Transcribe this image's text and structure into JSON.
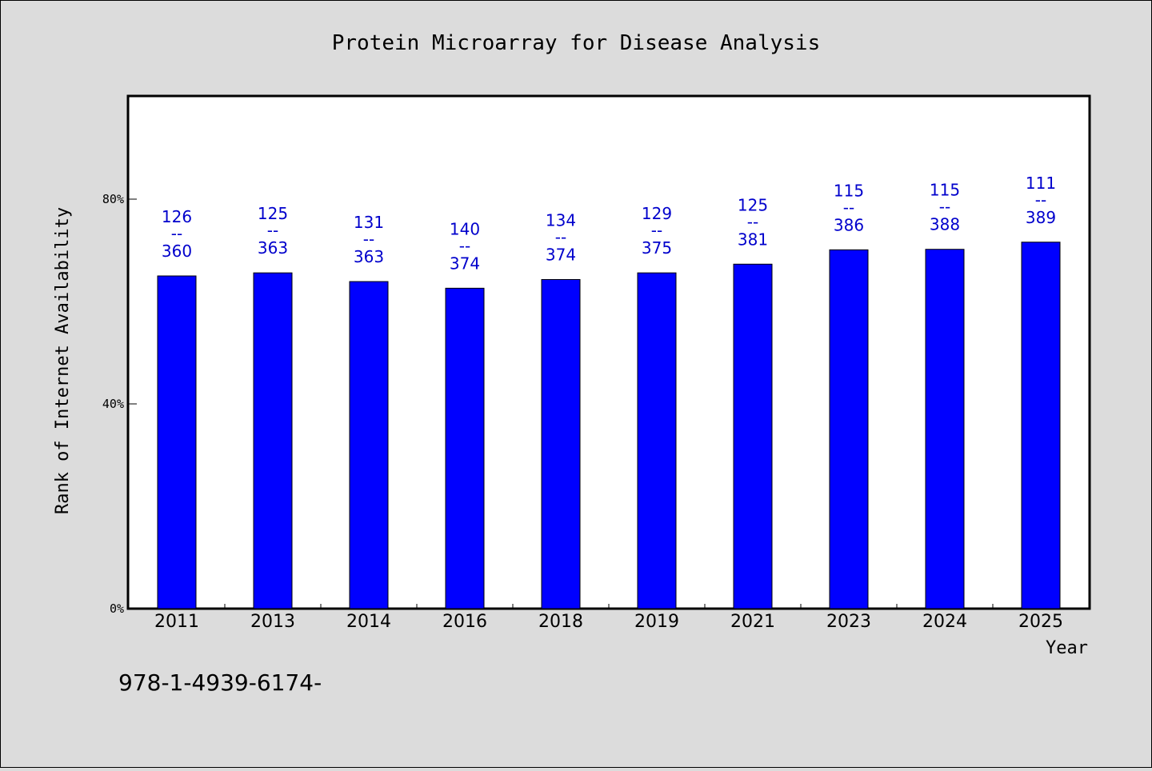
{
  "chart_data": {
    "type": "bar",
    "title": "Protein Microarray for Disease Analysis",
    "xlabel": "Year",
    "ylabel": "Rank of Internet Availability",
    "categories": [
      "2011",
      "2013",
      "2014",
      "2016",
      "2018",
      "2019",
      "2021",
      "2023",
      "2024",
      "2025"
    ],
    "values": [
      65.0,
      65.6,
      63.9,
      62.6,
      64.3,
      65.6,
      67.3,
      70.1,
      70.2,
      71.6
    ],
    "unit": "%",
    "ylim": [
      0,
      100
    ],
    "yticks": [
      0,
      40,
      80
    ],
    "ytick_labels": [
      "0%",
      "40%",
      "80%"
    ],
    "data_labels": [
      {
        "top": "126",
        "sep": "--",
        "bottom": "360"
      },
      {
        "top": "125",
        "sep": "--",
        "bottom": "363"
      },
      {
        "top": "131",
        "sep": "--",
        "bottom": "363"
      },
      {
        "top": "140",
        "sep": "--",
        "bottom": "374"
      },
      {
        "top": "134",
        "sep": "--",
        "bottom": "374"
      },
      {
        "top": "129",
        "sep": "--",
        "bottom": "375"
      },
      {
        "top": "125",
        "sep": "--",
        "bottom": "381"
      },
      {
        "top": "115",
        "sep": "--",
        "bottom": "386"
      },
      {
        "top": "115",
        "sep": "--",
        "bottom": "388"
      },
      {
        "top": "111",
        "sep": "--",
        "bottom": "389"
      }
    ],
    "bar_color": "#0000ff",
    "label_color": "#0000cc",
    "grid": false,
    "legend": "none"
  },
  "footnote": "978-1-4939-6174-"
}
